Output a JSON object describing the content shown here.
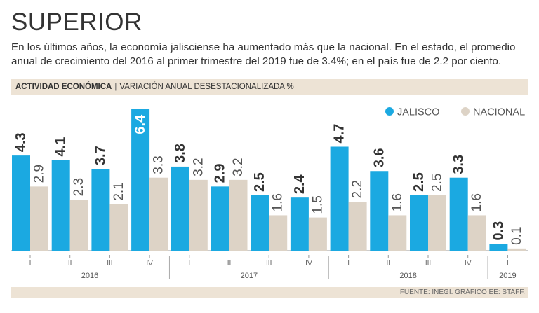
{
  "header": {
    "title": "SUPERIOR",
    "subtitle": "En los últimos años, la economía jalisciense ha aumentado más que la nacional. En el estado, el promedio anual de crecimiento del 2016 al primer trimestre del 2019 fue de 3.4%; en el país fue de 2.2 por ciento."
  },
  "band": {
    "label_bold": "ACTIVIDAD ECONÓMICA",
    "separator": "|",
    "label_rest": "VARIACIÓN ANUAL DESESTACIONALIZADA %"
  },
  "footer": {
    "source": "FUENTE: INEGI. GRÁFICO EE: STAFF."
  },
  "colors": {
    "jalisco": "#1ba9e1",
    "nacional": "#ddd3c6",
    "text": "#333333",
    "band": "#ede3d5"
  },
  "chart_data": {
    "type": "bar",
    "categories": [
      "I",
      "II",
      "III",
      "IV",
      "I",
      "II",
      "III",
      "IV",
      "I",
      "II",
      "III",
      "IV",
      "I"
    ],
    "years": [
      {
        "label": "2016",
        "quarters": 4
      },
      {
        "label": "2017",
        "quarters": 4
      },
      {
        "label": "2018",
        "quarters": 4
      },
      {
        "label": "2019",
        "quarters": 1
      }
    ],
    "series": [
      {
        "name": "JALISCO",
        "values": [
          4.3,
          4.1,
          3.7,
          6.4,
          3.8,
          2.9,
          2.5,
          2.4,
          4.7,
          3.6,
          2.5,
          3.3,
          0.3
        ],
        "labels": [
          "4.3",
          "4.1",
          "3.7",
          "6.4",
          "3.8",
          "2.9",
          "2.5",
          "2.4",
          "4.7",
          "3.6",
          "2.5",
          "3.3",
          "0.3"
        ]
      },
      {
        "name": "NACIONAL",
        "values": [
          2.9,
          2.3,
          2.1,
          3.3,
          3.2,
          3.2,
          1.6,
          1.5,
          2.2,
          1.6,
          2.5,
          1.6,
          0.1
        ],
        "labels": [
          "2.9",
          "2.3",
          "2.1",
          "3.3",
          "3.2",
          "3.2",
          "1.6",
          "1.5",
          "2.2",
          "1.6",
          "2.5",
          "1.6",
          "0.1"
        ]
      }
    ],
    "ylim": [
      0,
      6.4
    ],
    "grid": false,
    "legend": "top-right"
  }
}
